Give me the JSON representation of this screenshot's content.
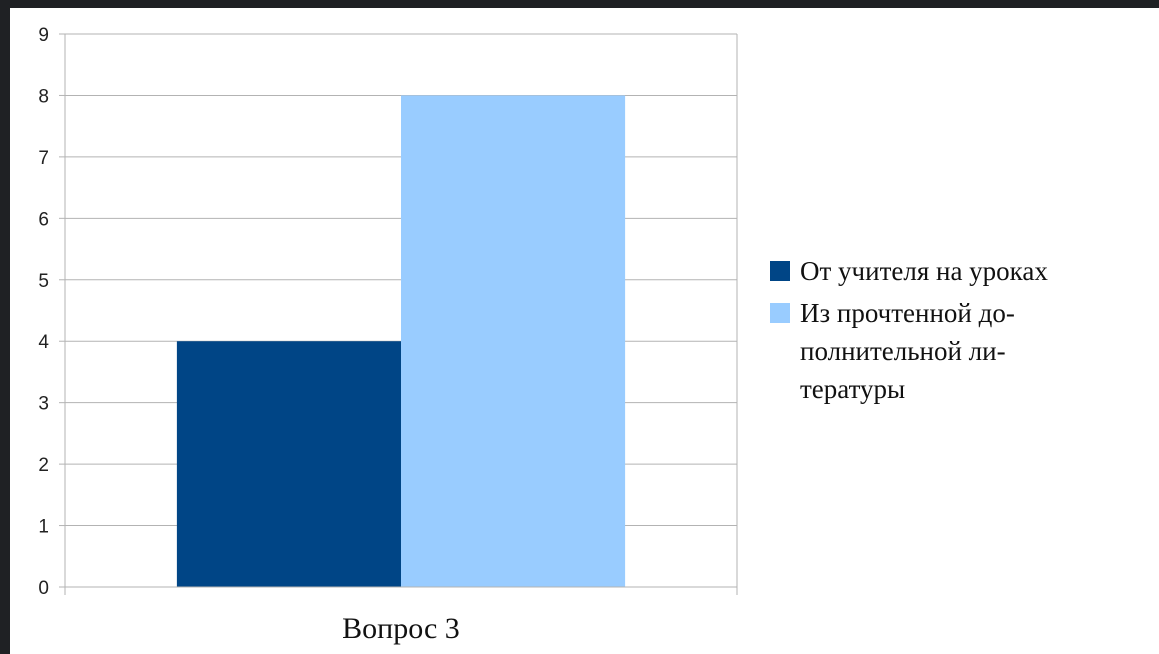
{
  "chart_data": {
    "type": "bar",
    "categories": [
      "Вопрос 3"
    ],
    "series": [
      {
        "name": "От учителя на уроках",
        "values": [
          4
        ],
        "color": "#004586"
      },
      {
        "name": "Из прочтенной до-\nполнительной ли-\nтературы",
        "values": [
          8
        ],
        "color": "#99ccff"
      }
    ],
    "ylim": [
      0,
      9
    ],
    "yticks": [
      0,
      1,
      2,
      3,
      4,
      5,
      6,
      7,
      8,
      9
    ],
    "grid": true,
    "legend": "right",
    "title": "",
    "xlabel": "",
    "ylabel": ""
  }
}
